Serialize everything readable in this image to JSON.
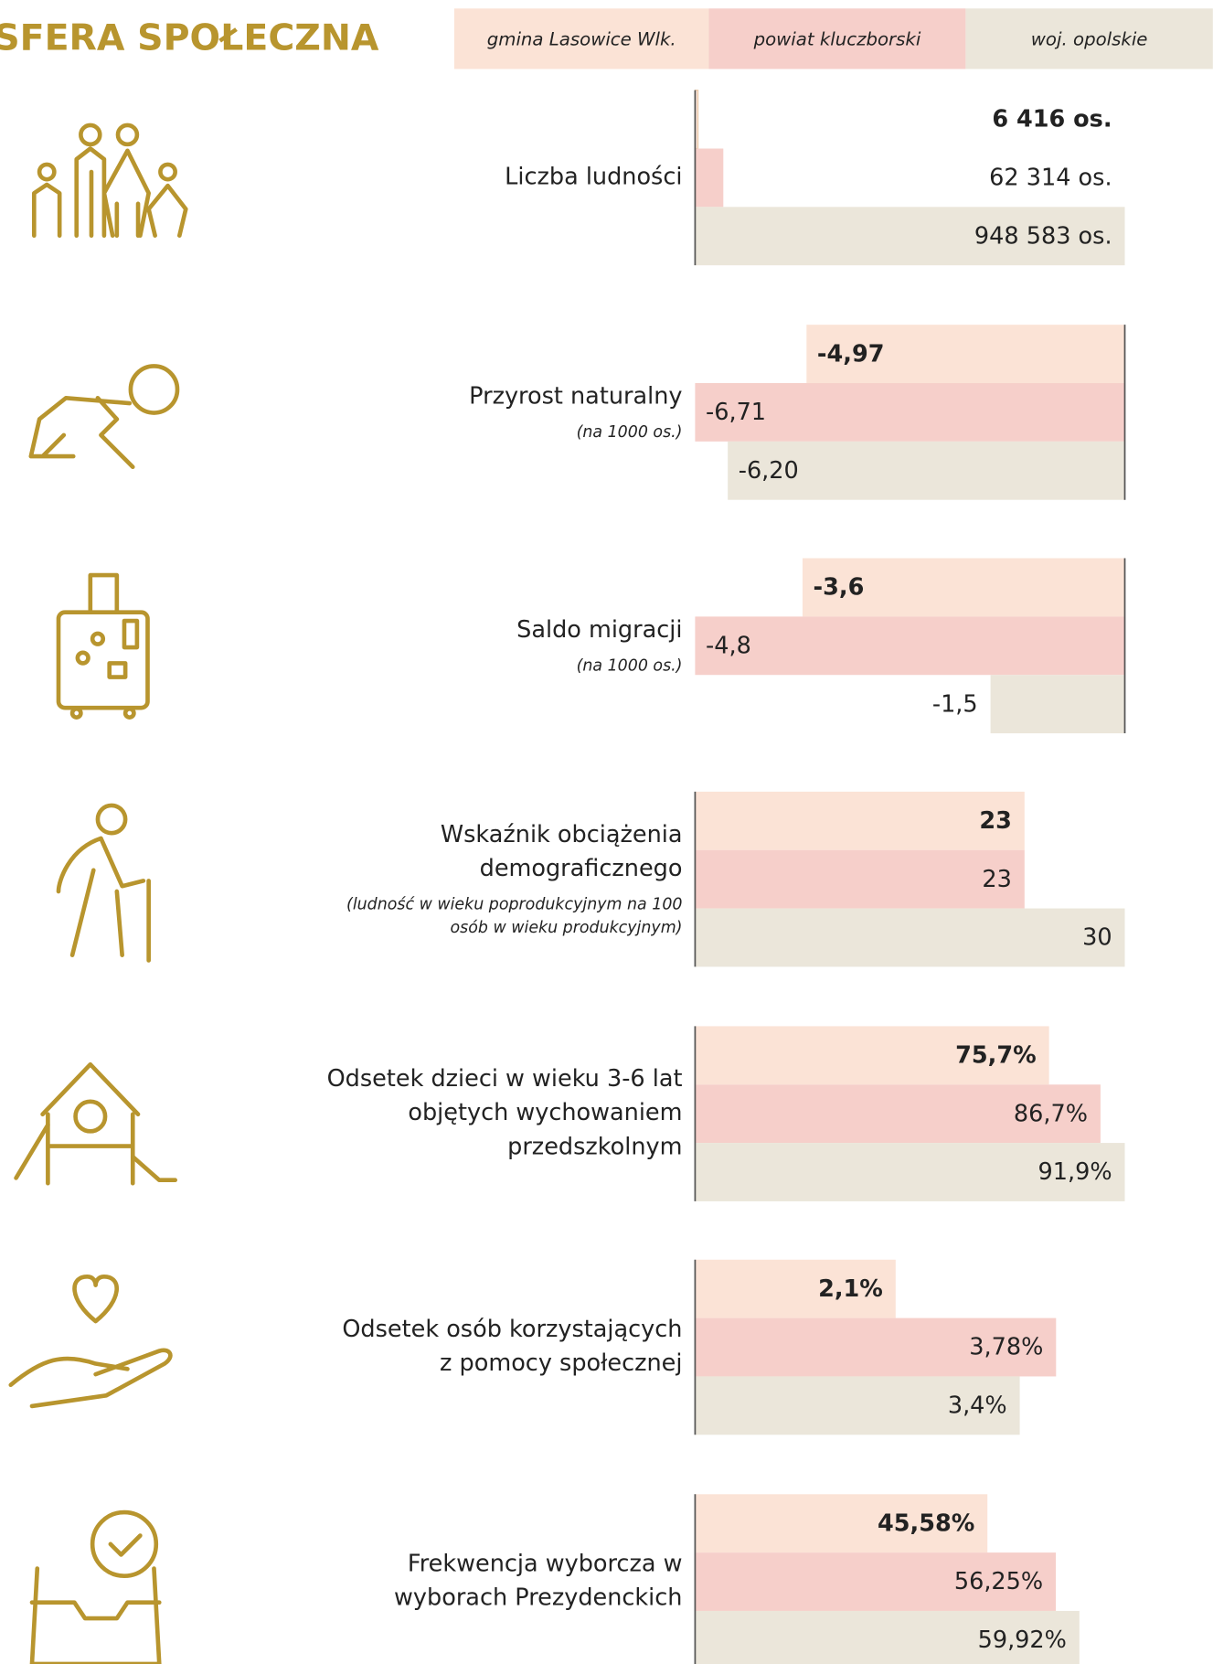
{
  "header": {
    "title": "SFERA SPOŁECZNA"
  },
  "legend": [
    {
      "name": "gmina Lasowice Wlk.",
      "color": "#fbe3d6"
    },
    {
      "name": "powiat kluczborski",
      "color": "#f6cfca"
    },
    {
      "name": "woj. opolskie",
      "color": "#ebe6da"
    }
  ],
  "chart_data": [
    {
      "type": "bar",
      "title": [
        "Liczba ludności"
      ],
      "values": [
        6416,
        62314,
        948583
      ],
      "value_labels": [
        "6 416 os.",
        "62 314 os.",
        "948 583 os."
      ],
      "xlim": [
        0,
        948583
      ]
    },
    {
      "type": "bar",
      "title": [
        "Przyrost naturalny"
      ],
      "note": [
        "(na 1000 os.)"
      ],
      "values": [
        -4.97,
        -6.71,
        -6.2
      ],
      "value_labels": [
        "-4,97",
        "-6,71",
        "-6,20"
      ],
      "xlim": [
        -6.71,
        0
      ]
    },
    {
      "type": "bar",
      "title": [
        "Saldo migracji"
      ],
      "note": [
        "(na 1000 os.)"
      ],
      "values": [
        -3.6,
        -4.8,
        -1.5
      ],
      "value_labels": [
        "-3,6",
        "-4,8",
        "-1,5"
      ],
      "xlim": [
        -4.8,
        0
      ]
    },
    {
      "type": "bar",
      "title": [
        "Wskaźnik obciążenia",
        "demograficznego"
      ],
      "note": [
        "(ludność w wieku poprodukcyjnym na 100",
        "osób w wieku produkcyjnym)"
      ],
      "values": [
        23,
        23,
        30
      ],
      "xlim": [
        0,
        30
      ]
    },
    {
      "type": "bar",
      "title": [
        "Odsetek dzieci w wieku 3-6 lat",
        "objętych wychowaniem",
        "przedszkolnym"
      ],
      "values": [
        75.7,
        86.7,
        91.9
      ],
      "value_labels": [
        "75,7%",
        "86,7%",
        "91,9%"
      ],
      "xlim": [
        0,
        91.9
      ]
    },
    {
      "type": "bar",
      "title": [
        "Odsetek osób korzystających",
        "z pomocy społecznej"
      ],
      "values": [
        2.1,
        3.78,
        3.4
      ],
      "value_labels": [
        "2,1%",
        "3,78%",
        "3,4%"
      ],
      "xlim": [
        0,
        4.5
      ]
    },
    {
      "type": "bar",
      "title": [
        "Frekwencja wyborcza w",
        "wyborach Prezydenckich"
      ],
      "values": [
        45.58,
        56.25,
        59.92
      ],
      "value_labels": [
        "45,58%",
        "56,25%",
        "59,92%"
      ],
      "xlim": [
        0,
        67
      ]
    }
  ]
}
